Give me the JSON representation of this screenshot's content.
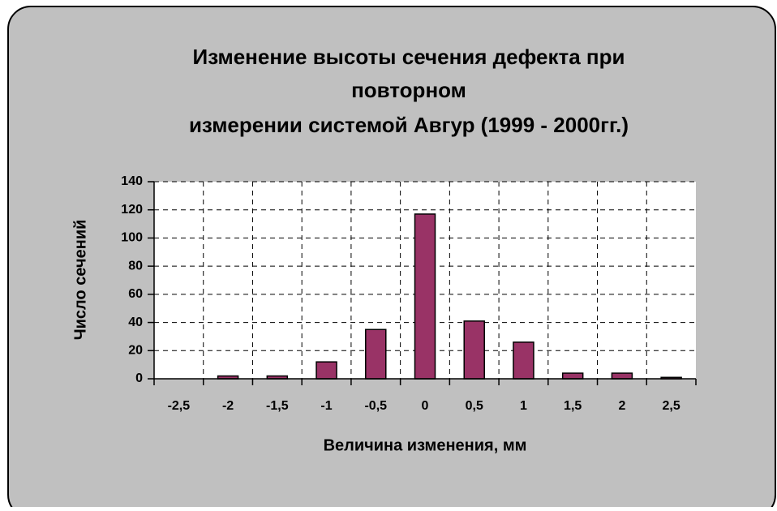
{
  "chart_data": {
    "type": "bar",
    "title": [
      "Изменение высоты сечения дефекта при",
      "повторном",
      "измерении системой Авгур (1999 - 2000гг.)"
    ],
    "x_label": "Величина изменения, мм",
    "y_label": "Число  сечений",
    "categories": [
      "-2,5",
      "-2",
      "-1,5",
      "-1",
      "-0,5",
      "0",
      "0,5",
      "1",
      "1,5",
      "2",
      "2,5"
    ],
    "values": [
      0,
      2,
      2,
      12,
      35,
      117,
      41,
      26,
      4,
      4,
      1
    ],
    "color": "#993366",
    "ylim": [
      0,
      140
    ],
    "yticks": [
      0,
      20,
      40,
      60,
      80,
      100,
      120,
      140
    ],
    "grid": true
  }
}
